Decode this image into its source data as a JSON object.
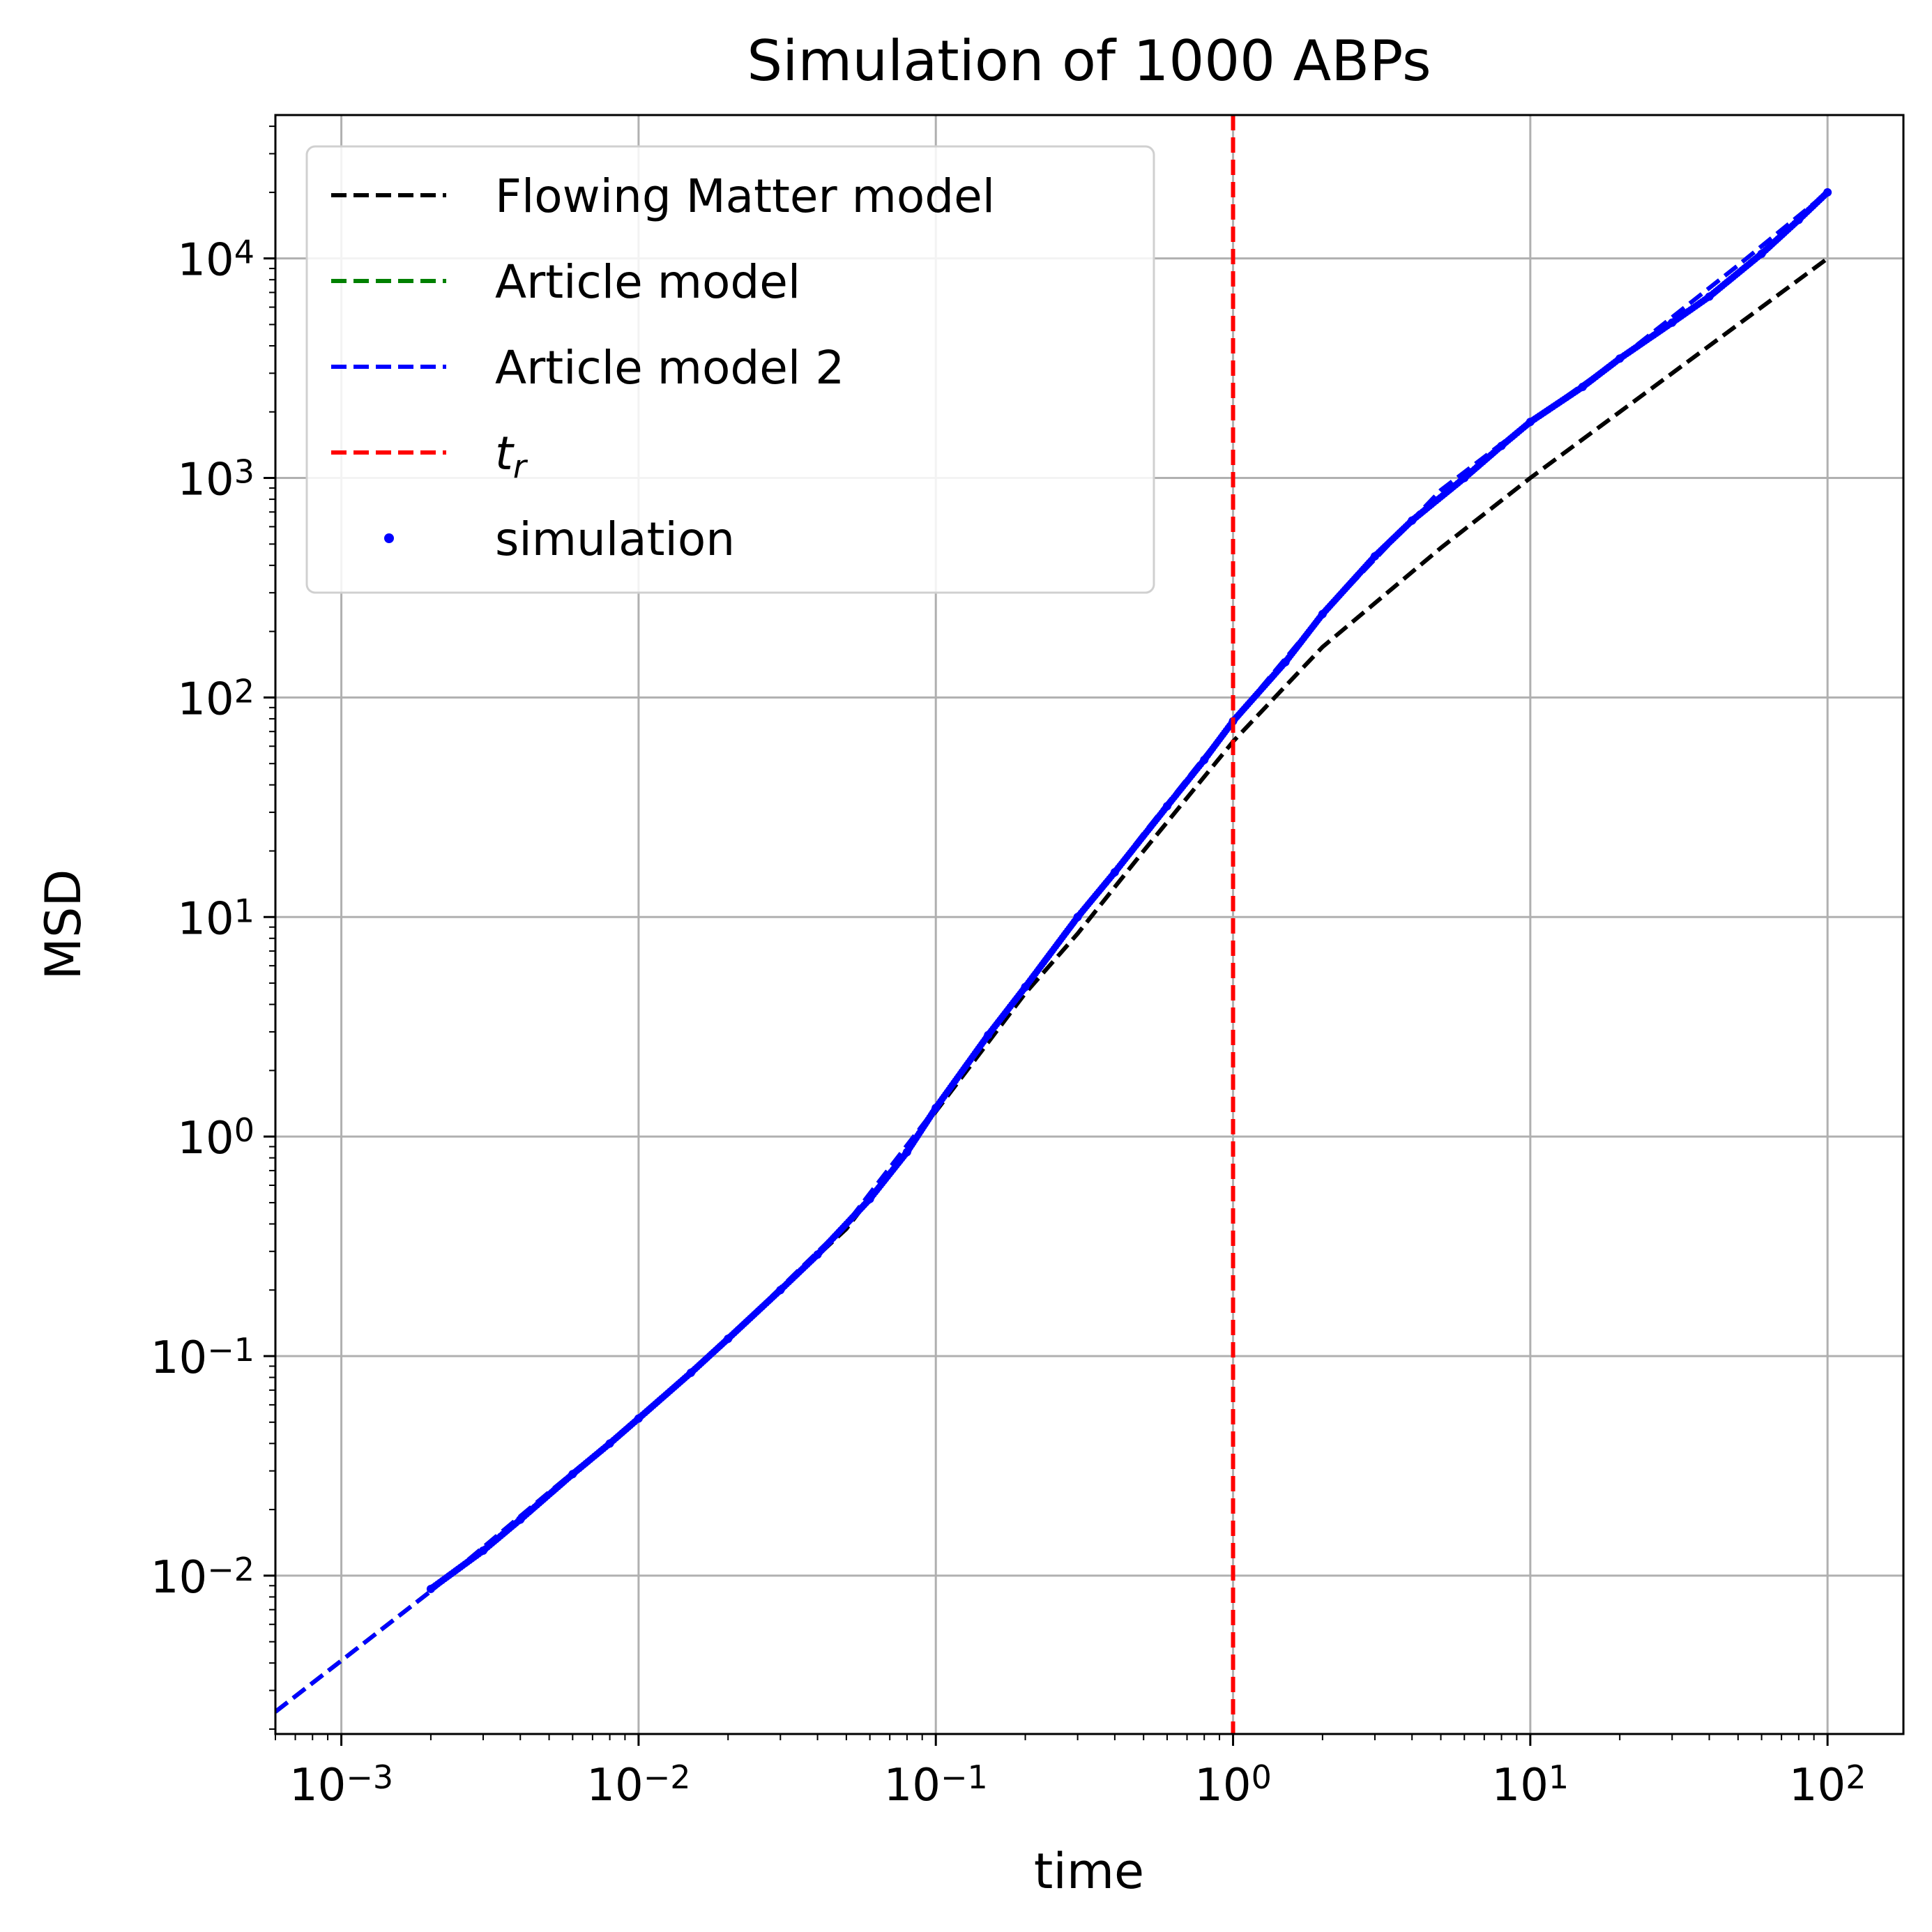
{
  "chart_data": {
    "type": "line",
    "title": "Simulation of 1000 ABPs",
    "xlabel": "time",
    "ylabel": "MSD",
    "x_scale": "log",
    "y_scale": "log",
    "xlim": [
      0.0006,
      180
    ],
    "ylim": [
      0.0019,
      45000
    ],
    "grid": true,
    "legend_position": "top-left",
    "x_ticks": [
      {
        "value": 0.001,
        "base": "10",
        "exp": "−3"
      },
      {
        "value": 0.01,
        "base": "10",
        "exp": "−2"
      },
      {
        "value": 0.1,
        "base": "10",
        "exp": "−1"
      },
      {
        "value": 1,
        "base": "10",
        "exp": "0"
      },
      {
        "value": 10,
        "base": "10",
        "exp": "1"
      },
      {
        "value": 100,
        "base": "10",
        "exp": "2"
      }
    ],
    "y_ticks": [
      {
        "value": 0.01,
        "base": "10",
        "exp": "−2"
      },
      {
        "value": 0.1,
        "base": "10",
        "exp": "−1"
      },
      {
        "value": 1,
        "base": "10",
        "exp": "0"
      },
      {
        "value": 10,
        "base": "10",
        "exp": "1"
      },
      {
        "value": 100,
        "base": "10",
        "exp": "2"
      },
      {
        "value": 1000,
        "base": "10",
        "exp": "3"
      },
      {
        "value": 10000,
        "base": "10",
        "exp": "4"
      }
    ],
    "legend": [
      {
        "label": "Flowing Matter model",
        "color": "#000000",
        "style": "dashed"
      },
      {
        "label": "Article model",
        "color": "#008000",
        "style": "dashed"
      },
      {
        "label": "Article model 2",
        "color": "#0000ff",
        "style": "dashed"
      },
      {
        "label_base": "t",
        "label_sub": "r",
        "color": "#ff0000",
        "style": "dashed"
      },
      {
        "label": "simulation",
        "color": "#0000ff",
        "style": "points"
      }
    ],
    "series": [
      {
        "name": "Flowing Matter model",
        "color": "#000000",
        "style": "dashed",
        "x": [
          0.0006,
          0.001,
          0.002,
          0.005,
          0.01,
          0.02,
          0.05,
          0.1,
          0.2,
          0.3,
          0.5,
          1,
          2,
          5,
          10,
          20,
          50,
          100
        ],
        "y": [
          0.0024,
          0.0041,
          0.0085,
          0.024,
          0.052,
          0.12,
          0.38,
          1.3,
          4.5,
          8.4,
          20,
          63,
          170,
          480,
          1000,
          2000,
          5000,
          10000
        ]
      },
      {
        "name": "Article model",
        "color": "#008000",
        "style": "dashed",
        "x": [
          0.0006,
          0.001,
          0.002,
          0.005,
          0.01,
          0.02,
          0.05,
          0.1,
          0.2,
          0.5,
          1,
          2,
          5,
          10,
          20,
          50,
          100
        ],
        "y": [
          0.0024,
          0.0041,
          0.0085,
          0.024,
          0.052,
          0.12,
          0.4,
          1.35,
          4.8,
          24,
          78,
          240,
          880,
          1800,
          3500,
          9300,
          20000
        ]
      },
      {
        "name": "Article model 2",
        "color": "#0000ff",
        "style": "dashed",
        "x": [
          0.0006,
          0.001,
          0.002,
          0.005,
          0.01,
          0.02,
          0.05,
          0.1,
          0.2,
          0.5,
          1,
          2,
          5,
          10,
          20,
          50,
          100
        ],
        "y": [
          0.0024,
          0.0041,
          0.0085,
          0.024,
          0.052,
          0.12,
          0.4,
          1.35,
          4.8,
          24,
          78,
          240,
          880,
          1800,
          3500,
          9300,
          20000
        ]
      },
      {
        "name": "simulation",
        "color": "#0000ff",
        "style": "points",
        "x": [
          0.002,
          0.003,
          0.004,
          0.006,
          0.008,
          0.01,
          0.015,
          0.02,
          0.03,
          0.04,
          0.06,
          0.08,
          0.1,
          0.15,
          0.2,
          0.3,
          0.4,
          0.6,
          0.8,
          1,
          1.5,
          2,
          3,
          4,
          6,
          8,
          10,
          15,
          20,
          30,
          40,
          60,
          80,
          100
        ],
        "y": [
          0.0087,
          0.013,
          0.018,
          0.029,
          0.04,
          0.052,
          0.084,
          0.12,
          0.2,
          0.29,
          0.52,
          0.85,
          1.35,
          2.9,
          4.8,
          10,
          16,
          32,
          52,
          78,
          145,
          240,
          440,
          640,
          1000,
          1400,
          1800,
          2600,
          3500,
          5100,
          6700,
          10500,
          15000,
          20000
        ]
      },
      {
        "name": "t_r",
        "color": "#ff0000",
        "style": "dashed-vertical",
        "x_value": 1
      }
    ]
  }
}
